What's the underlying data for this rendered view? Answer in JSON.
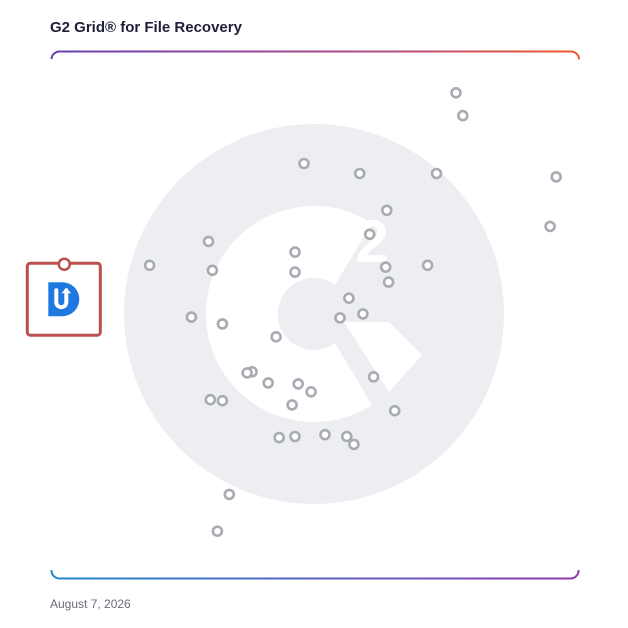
{
  "title": "G2 Grid® for File Recovery",
  "date": "August 7, 2026",
  "colors": {
    "frame_top_left": "#6a3fb5",
    "frame_top_right": "#f05a28",
    "frame_bottom_left": "#1e88c8",
    "frame_bottom_right": "#8e3aa8",
    "marker_stroke": "#a9abb3",
    "highlight_border": "#b8504f",
    "highlight_logo": "#1f78e0",
    "watermark": "#eceef1"
  },
  "highlight": {
    "icon": "product-logo-icon",
    "letter": "D",
    "x": -0.955,
    "y": 0.06
  },
  "chart_data": {
    "type": "scatter",
    "title": "G2 Grid® for File Recovery",
    "xlabel": "",
    "ylabel": "",
    "xlim": [
      -1,
      1
    ],
    "ylim": [
      -1,
      1
    ],
    "grid": "quadrants",
    "points": [
      {
        "x": 0.536,
        "y": 0.845
      },
      {
        "x": 0.562,
        "y": 0.758
      },
      {
        "x": -0.042,
        "y": 0.576
      },
      {
        "x": 0.17,
        "y": 0.538
      },
      {
        "x": 0.462,
        "y": 0.538
      },
      {
        "x": 0.917,
        "y": 0.525
      },
      {
        "x": 0.273,
        "y": 0.398
      },
      {
        "x": 0.894,
        "y": 0.337
      },
      {
        "x": 0.208,
        "y": 0.307
      },
      {
        "x": -0.405,
        "y": 0.28
      },
      {
        "x": -0.076,
        "y": 0.239
      },
      {
        "x": -0.629,
        "y": 0.189
      },
      {
        "x": -0.39,
        "y": 0.17
      },
      {
        "x": -0.076,
        "y": 0.163
      },
      {
        "x": 0.269,
        "y": 0.182
      },
      {
        "x": 0.428,
        "y": 0.189
      },
      {
        "x": 0.28,
        "y": 0.125
      },
      {
        "x": 0.129,
        "y": 0.064
      },
      {
        "x": 0.182,
        "y": 0.004
      },
      {
        "x": 0.095,
        "y": -0.011
      },
      {
        "x": -0.47,
        "y": -0.008
      },
      {
        "x": -0.352,
        "y": -0.034
      },
      {
        "x": -0.148,
        "y": -0.083
      },
      {
        "x": -0.239,
        "y": -0.216
      },
      {
        "x": -0.258,
        "y": -0.22
      },
      {
        "x": 0.223,
        "y": -0.235
      },
      {
        "x": -0.178,
        "y": -0.258
      },
      {
        "x": -0.064,
        "y": -0.262
      },
      {
        "x": -0.015,
        "y": -0.292
      },
      {
        "x": -0.398,
        "y": -0.322
      },
      {
        "x": -0.352,
        "y": -0.326
      },
      {
        "x": -0.087,
        "y": -0.342
      },
      {
        "x": 0.303,
        "y": -0.364
      },
      {
        "x": 0.038,
        "y": -0.455
      },
      {
        "x": -0.136,
        "y": -0.466
      },
      {
        "x": -0.076,
        "y": -0.462
      },
      {
        "x": 0.121,
        "y": -0.462
      },
      {
        "x": 0.148,
        "y": -0.492
      },
      {
        "x": -0.326,
        "y": -0.682
      },
      {
        "x": -0.371,
        "y": -0.822
      }
    ]
  }
}
